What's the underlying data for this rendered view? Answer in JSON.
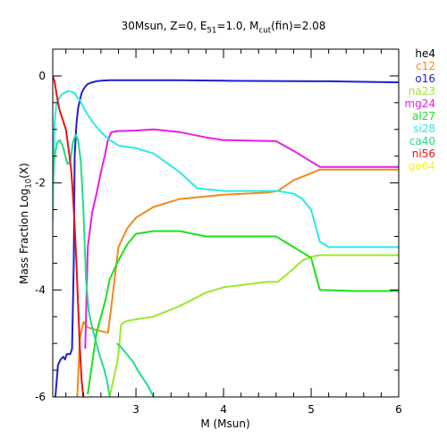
{
  "chart_data": {
    "type": "line",
    "title": {
      "parts": [
        {
          "t": "30Msun, Z=0, E",
          "s": "normal"
        },
        {
          "t": "51",
          "s": "sub"
        },
        {
          "t": "=1.0, M",
          "s": "normal"
        },
        {
          "t": "cut",
          "s": "sub"
        },
        {
          "t": "(fin)=2.08",
          "s": "normal"
        }
      ]
    },
    "xlabel": "M (Msun)",
    "ylabel": {
      "parts": [
        {
          "t": "Mass Fraction Log",
          "s": "normal"
        },
        {
          "t": "10",
          "s": "sub"
        },
        {
          "t": "(X)",
          "s": "normal"
        }
      ]
    },
    "xlim": [
      2.05,
      6
    ],
    "ylim": [
      -6,
      0.5
    ],
    "xticks": [
      3,
      4,
      5,
      6
    ],
    "yticks": [
      0,
      -2,
      -4,
      -6
    ],
    "legend_position": "right",
    "series": [
      {
        "name": "he4",
        "color": "#000000",
        "x": [],
        "y": []
      },
      {
        "name": "c12",
        "color": "#f08a1c",
        "x": [
          2.33,
          2.36,
          2.4,
          2.45,
          2.55,
          2.68,
          2.72,
          2.8,
          2.9,
          3.0,
          3.2,
          3.5,
          4.0,
          4.5,
          4.62,
          4.8,
          5.0,
          5.1,
          5.5,
          6.0
        ],
        "y": [
          -6.0,
          -4.9,
          -4.6,
          -4.7,
          -4.75,
          -4.8,
          -4.3,
          -3.2,
          -2.85,
          -2.65,
          -2.45,
          -2.3,
          -2.22,
          -2.18,
          -2.15,
          -1.95,
          -1.82,
          -1.75,
          -1.75,
          -1.75
        ]
      },
      {
        "name": "o16",
        "color": "#1f1fd6",
        "x": [
          2.08,
          2.11,
          2.14,
          2.17,
          2.19,
          2.21,
          2.23,
          2.25,
          2.27,
          2.29,
          2.3,
          2.32,
          2.34,
          2.36,
          2.38,
          2.4,
          2.42,
          2.45,
          2.5,
          2.55,
          2.6,
          2.7,
          2.8,
          3.0,
          3.5,
          4.0,
          5.0,
          5.2,
          6.0
        ],
        "y": [
          -6.0,
          -5.4,
          -5.3,
          -5.25,
          -5.3,
          -5.2,
          -5.2,
          -5.2,
          -5.1,
          -3.5,
          -1.5,
          -0.9,
          -0.6,
          -0.45,
          -0.32,
          -0.25,
          -0.2,
          -0.15,
          -0.12,
          -0.1,
          -0.09,
          -0.08,
          -0.08,
          -0.08,
          -0.08,
          -0.09,
          -0.1,
          -0.1,
          -0.12
        ]
      },
      {
        "name": "na23",
        "color": "#9be82a",
        "x": [
          2.7,
          2.78,
          2.8,
          2.83,
          2.87,
          2.9,
          3.0,
          3.2,
          3.5,
          3.8,
          4.0,
          4.5,
          4.62,
          4.8,
          4.9,
          5.0,
          5.1,
          5.5,
          6.0
        ],
        "y": [
          -6.0,
          -5.4,
          -5.2,
          -4.65,
          -4.6,
          -4.58,
          -4.55,
          -4.5,
          -4.3,
          -4.05,
          -3.95,
          -3.85,
          -3.85,
          -3.6,
          -3.45,
          -3.38,
          -3.35,
          -3.35,
          -3.35
        ]
      },
      {
        "name": "mg24",
        "color": "#e61ee6",
        "x": [
          2.42,
          2.45,
          2.5,
          2.55,
          2.6,
          2.65,
          2.68,
          2.72,
          2.8,
          3.0,
          3.2,
          3.5,
          3.8,
          4.0,
          4.6,
          4.8,
          5.0,
          5.1,
          6.0
        ],
        "y": [
          -5.1,
          -3.2,
          -2.55,
          -2.2,
          -1.8,
          -1.45,
          -1.2,
          -1.05,
          -1.03,
          -1.02,
          -1.0,
          -1.05,
          -1.15,
          -1.2,
          -1.22,
          -1.4,
          -1.6,
          -1.7,
          -1.7
        ]
      },
      {
        "name": "al27",
        "color": "#1ee01e",
        "x": [
          2.45,
          2.55,
          2.6,
          2.65,
          2.7,
          2.8,
          2.9,
          3.0,
          3.2,
          3.5,
          3.8,
          4.0,
          4.6,
          4.8,
          5.0,
          5.1,
          5.5,
          6.0
        ],
        "y": [
          -5.95,
          -4.8,
          -4.5,
          -4.2,
          -3.8,
          -3.45,
          -3.15,
          -2.95,
          -2.9,
          -2.9,
          -3.0,
          -3.0,
          -3.0,
          -3.2,
          -3.4,
          -4.0,
          -4.02,
          -4.02
        ]
      },
      {
        "name": "si28",
        "color": "#2ee8e8",
        "x": [
          2.05,
          2.06,
          2.07,
          2.09,
          2.12,
          2.15,
          2.2,
          2.23,
          2.27,
          2.3,
          2.33,
          2.36,
          2.39,
          2.42,
          2.46,
          2.5,
          2.55,
          2.6,
          2.7,
          2.8,
          3.0,
          3.2,
          3.5,
          3.7,
          4.0,
          4.5,
          4.62,
          4.8,
          4.9,
          5.0,
          5.05,
          5.1,
          5.2,
          5.5,
          6.0
        ],
        "y": [
          -2.7,
          -1.5,
          -0.9,
          -0.55,
          -0.42,
          -0.35,
          -0.3,
          -0.28,
          -0.3,
          -0.32,
          -0.4,
          -0.45,
          -0.55,
          -0.65,
          -0.75,
          -0.85,
          -0.95,
          -1.05,
          -1.2,
          -1.3,
          -1.35,
          -1.45,
          -1.8,
          -2.1,
          -2.15,
          -2.15,
          -2.15,
          -2.2,
          -2.3,
          -2.5,
          -2.8,
          -3.1,
          -3.2,
          -3.2,
          -3.2
        ]
      },
      {
        "name": "ca40",
        "color": "#22dd88",
        "x": [
          2.05,
          2.07,
          2.1,
          2.13,
          2.16,
          2.18,
          2.2,
          2.22,
          2.25,
          2.28,
          2.31,
          2.34,
          2.37,
          2.4,
          2.43,
          2.46,
          2.5,
          2.55,
          2.58,
          2.61,
          2.64,
          2.67,
          2.7
        ],
        "y": [
          -2.0,
          -1.5,
          -1.25,
          -1.2,
          -1.3,
          -1.4,
          -1.55,
          -1.65,
          -1.6,
          -1.25,
          -1.1,
          -1.2,
          -1.6,
          -2.5,
          -3.8,
          -4.4,
          -4.7,
          -5.0,
          -5.2,
          -5.35,
          -5.5,
          -5.7,
          -6.0
        ]
      },
      {
        "name": "ni56",
        "color": "#ee1111",
        "x": [
          2.05,
          2.07,
          2.09,
          2.11,
          2.13,
          2.15,
          2.17,
          2.2,
          2.23,
          2.26,
          2.28,
          2.3,
          2.32,
          2.34,
          2.36,
          2.38,
          2.4
        ],
        "y": [
          0.0,
          -0.1,
          -0.3,
          -0.5,
          -0.65,
          -0.75,
          -0.85,
          -1.0,
          -1.35,
          -1.75,
          -2.2,
          -2.8,
          -3.5,
          -4.3,
          -5.1,
          -5.7,
          -6.0
        ]
      },
      {
        "name": "ge64",
        "color": "#f6f60e",
        "x": [],
        "y": []
      }
    ],
    "extra_segments": [
      {
        "series": "ca40",
        "color": "#22dd88",
        "x": [
          2.78,
          2.82,
          2.87,
          2.92,
          2.97,
          3.02,
          3.08,
          3.14,
          3.2
        ],
        "y": [
          -5.0,
          -5.05,
          -5.15,
          -5.25,
          -5.35,
          -5.5,
          -5.65,
          -5.8,
          -6.0
        ]
      }
    ]
  }
}
